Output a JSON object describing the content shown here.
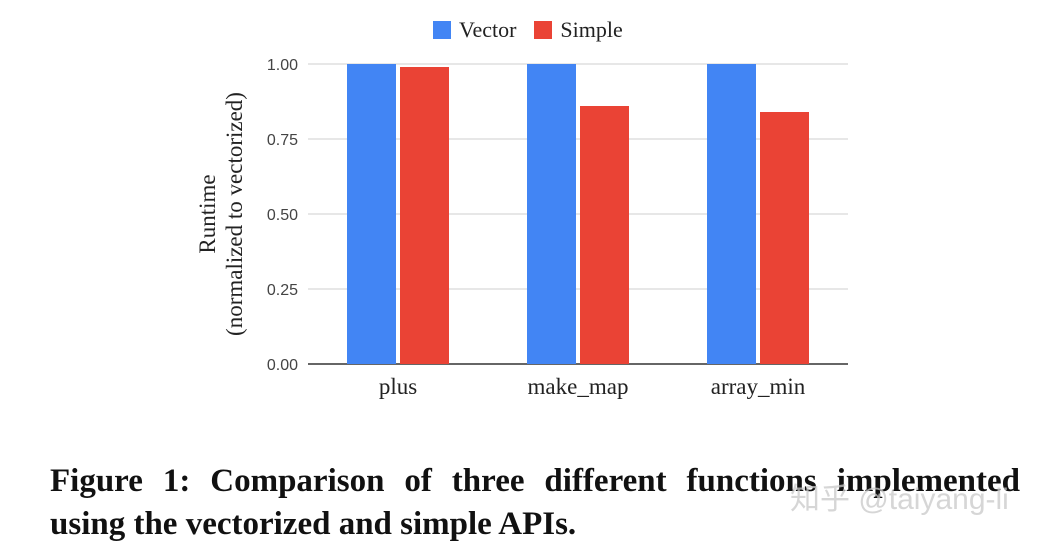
{
  "chart_data": {
    "type": "bar",
    "categories": [
      "plus",
      "make_map",
      "array_min"
    ],
    "series": [
      {
        "name": "Vector",
        "values": [
          1.0,
          1.0,
          1.0
        ],
        "color": "#4285f4"
      },
      {
        "name": "Simple",
        "values": [
          0.99,
          0.86,
          0.84
        ],
        "color": "#ea4335"
      }
    ],
    "ylabel": [
      "Runtime",
      "(normalized to vectorized)"
    ],
    "yticks": [
      "0.00",
      "0.25",
      "0.50",
      "0.75",
      "1.00"
    ],
    "ylim": [
      0,
      1.0
    ],
    "grid": true,
    "legend_position": "top-center"
  },
  "caption": "Figure 1: Comparison of three different functions implemented using the vectorized and simple APIs.",
  "watermark": "知乎 @taiyang-li"
}
